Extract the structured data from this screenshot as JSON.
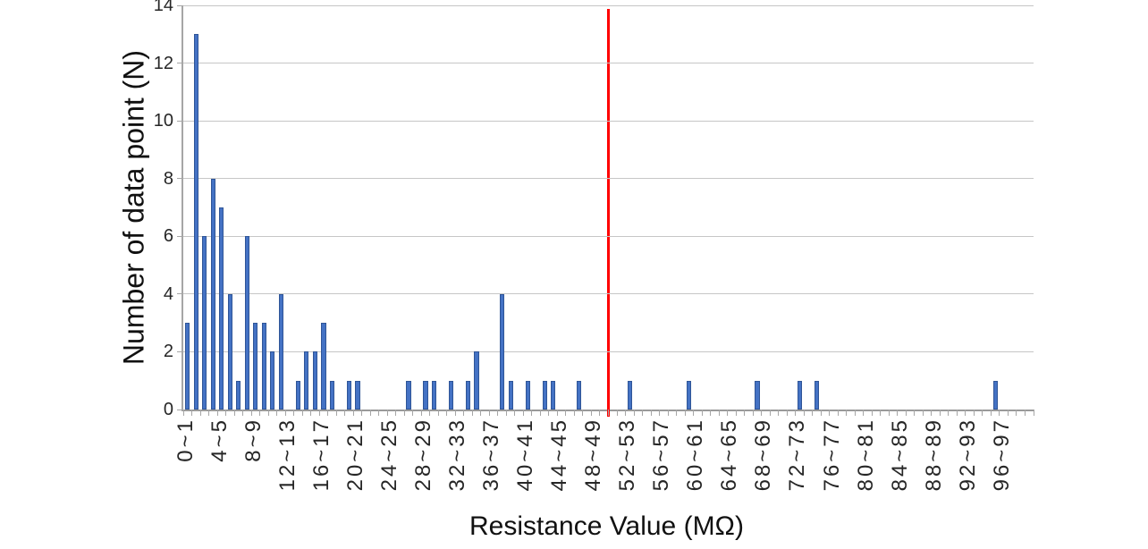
{
  "chart_data": {
    "type": "bar",
    "title": "",
    "xlabel": "Resistance Value (MΩ)",
    "ylabel": "Number of data point (N)",
    "ylim": [
      0,
      14
    ],
    "y_ticks": [
      0,
      2,
      4,
      6,
      8,
      10,
      12,
      14
    ],
    "grid": true,
    "legend_position": "none",
    "bar_color": "#4472c4",
    "bar_edge_color": "#2f5597",
    "x_label_interval": 4,
    "visible_x_labels": [
      "0~1",
      "4~5",
      "8~9",
      "12~13",
      "16~17",
      "20~21",
      "24~25",
      "28~29",
      "32~33",
      "36~37",
      "40~41",
      "44~45",
      "48~49",
      "52~53",
      "56~57",
      "60~61",
      "64~65",
      "68~69",
      "72~73",
      "76~77",
      "80~81",
      "84~85",
      "88~89",
      "92~93",
      "96~97"
    ],
    "categories": [
      "0~1",
      "1~2",
      "2~3",
      "3~4",
      "4~5",
      "5~6",
      "6~7",
      "7~8",
      "8~9",
      "9~10",
      "10~11",
      "11~12",
      "12~13",
      "13~14",
      "14~15",
      "15~16",
      "16~17",
      "17~18",
      "18~19",
      "19~20",
      "20~21",
      "21~22",
      "22~23",
      "23~24",
      "24~25",
      "25~26",
      "26~27",
      "27~28",
      "28~29",
      "29~30",
      "30~31",
      "31~32",
      "32~33",
      "33~34",
      "34~35",
      "35~36",
      "36~37",
      "37~38",
      "38~39",
      "39~40",
      "40~41",
      "41~42",
      "42~43",
      "43~44",
      "44~45",
      "45~46",
      "46~47",
      "47~48",
      "48~49",
      "49~50",
      "50~51",
      "51~52",
      "52~53",
      "53~54",
      "54~55",
      "55~56",
      "56~57",
      "57~58",
      "58~59",
      "59~60",
      "60~61",
      "61~62",
      "62~63",
      "63~64",
      "64~65",
      "65~66",
      "66~67",
      "67~68",
      "68~69",
      "69~70",
      "70~71",
      "71~72",
      "72~73",
      "73~74",
      "74~75",
      "75~76",
      "76~77",
      "77~78",
      "78~79",
      "79~80",
      "80~81",
      "81~82",
      "82~83",
      "83~84",
      "84~85",
      "85~86",
      "86~87",
      "87~88",
      "88~89",
      "89~90",
      "90~91",
      "91~92",
      "92~93",
      "93~94",
      "94~95",
      "95~96",
      "96~97",
      "97~98",
      "98~99",
      "99~100"
    ],
    "values": [
      3,
      13,
      6,
      8,
      7,
      4,
      1,
      6,
      3,
      3,
      2,
      4,
      0,
      1,
      2,
      2,
      3,
      1,
      0,
      1,
      1,
      0,
      0,
      0,
      0,
      0,
      1,
      0,
      1,
      1,
      0,
      1,
      0,
      1,
      2,
      0,
      0,
      4,
      1,
      0,
      1,
      0,
      1,
      1,
      0,
      0,
      1,
      0,
      0,
      0,
      0,
      0,
      1,
      0,
      0,
      0,
      0,
      0,
      0,
      1,
      0,
      0,
      0,
      0,
      0,
      0,
      0,
      1,
      0,
      0,
      0,
      0,
      1,
      0,
      1,
      0,
      0,
      0,
      0,
      0,
      0,
      0,
      0,
      0,
      0,
      0,
      0,
      0,
      0,
      0,
      0,
      0,
      0,
      0,
      0,
      1,
      0,
      0,
      0,
      0
    ],
    "reference_line": {
      "x_value": 50,
      "color": "#ff0000"
    }
  }
}
